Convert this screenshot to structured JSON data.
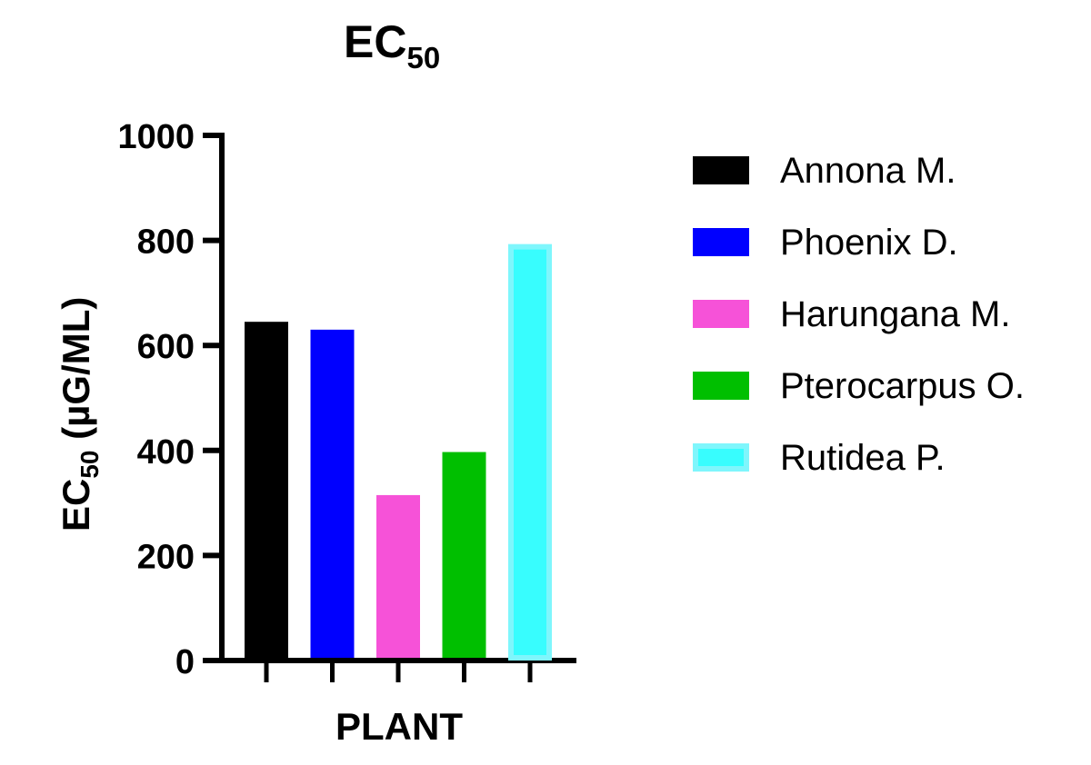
{
  "chart_data": {
    "type": "bar",
    "title": {
      "main": "EC",
      "sub": "50"
    },
    "xlabel": "PLANT",
    "ylabel": {
      "main": "EC",
      "sub": "50",
      "unit": " (µG/ML)"
    },
    "ylim": [
      0,
      1000
    ],
    "yticks": [
      0,
      200,
      400,
      600,
      800,
      1000
    ],
    "grid": false,
    "legend_position": "right",
    "categories": [
      "Annona M.",
      "Phoenix D.",
      "Harungana M.",
      "Pterocarpus O.",
      "Rutidea P."
    ],
    "values": [
      645,
      630,
      315,
      397,
      793
    ],
    "colors": [
      "#000000",
      "#0000ff",
      "#f652d8",
      "#00bf00",
      "#38fdfe"
    ],
    "outline_colors": [
      "#000000",
      "#0000ff",
      "#f652d8",
      "#00bf00",
      "#7ff6fc"
    ]
  }
}
